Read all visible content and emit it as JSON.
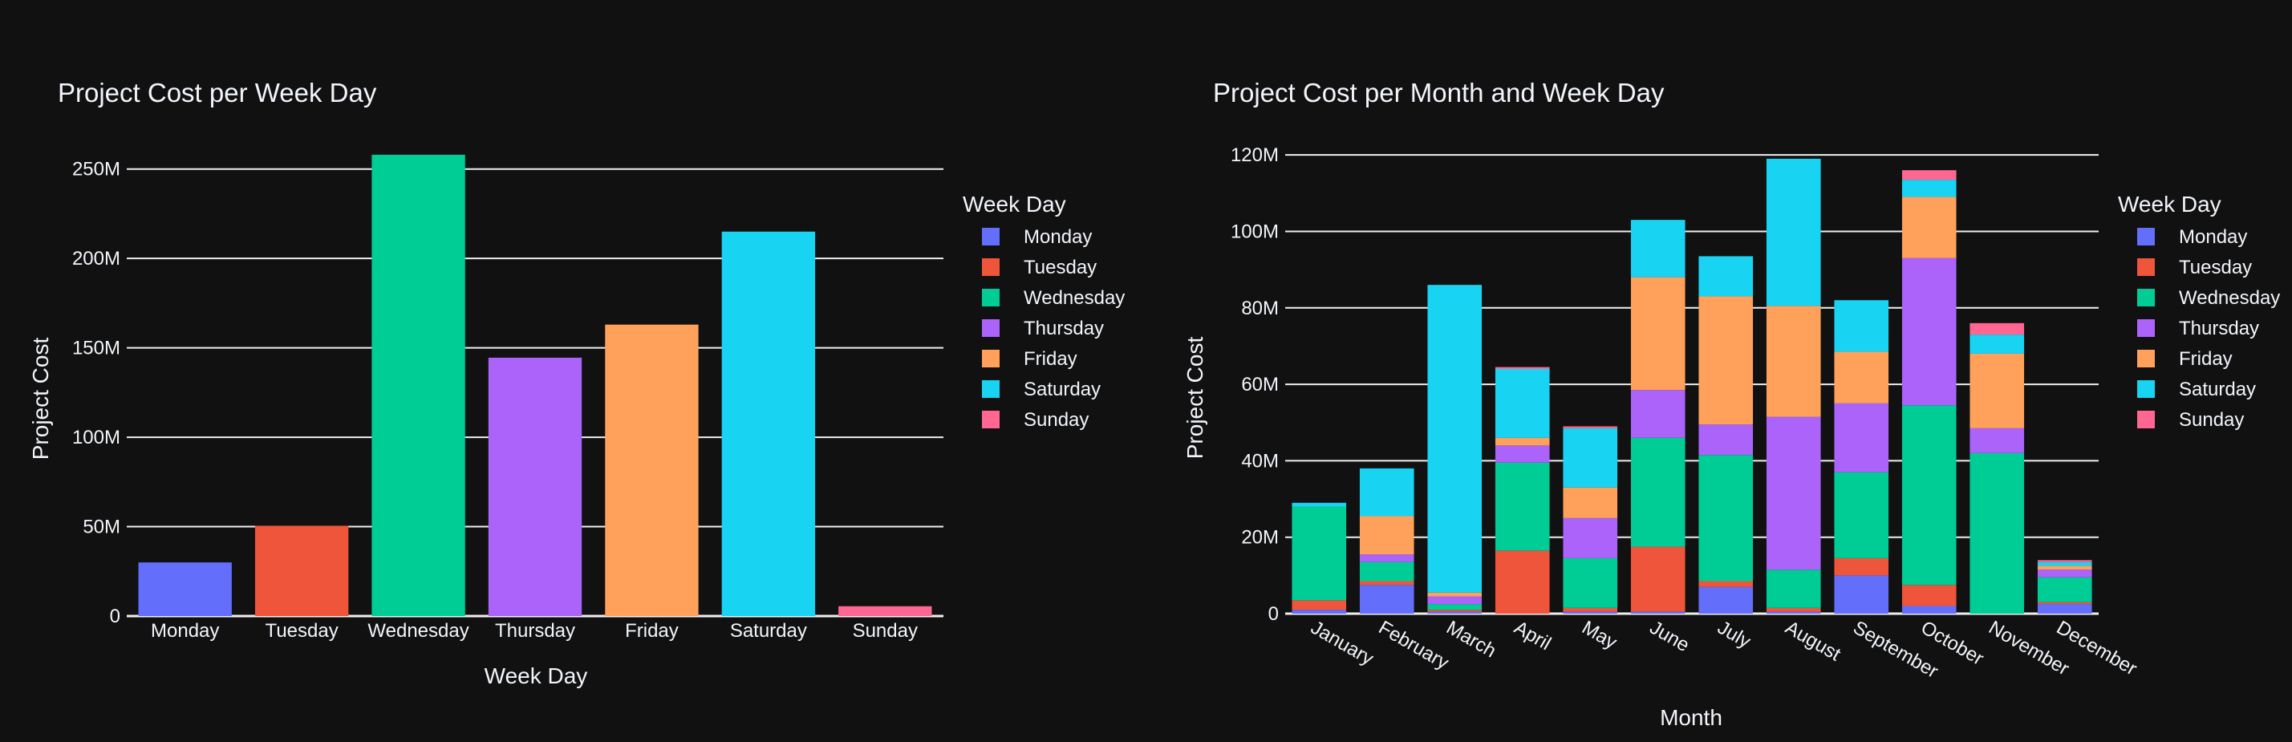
{
  "colors": {
    "Monday": "#636efa",
    "Tuesday": "#ef553b",
    "Wednesday": "#00cc96",
    "Thursday": "#ab63fa",
    "Friday": "#ffa15a",
    "Saturday": "#19d3f3",
    "Sunday": "#ff6692"
  },
  "chart_data": [
    {
      "type": "bar",
      "title": "Project Cost per Week Day",
      "xlabel": "Week Day",
      "ylabel": "Project Cost",
      "legend_title": "Week Day",
      "legend_position": "top-right",
      "grid": true,
      "ylim": [
        0,
        275000000
      ],
      "yticks": [
        0,
        50000000,
        100000000,
        150000000,
        200000000,
        250000000
      ],
      "ytick_labels": [
        "0",
        "50M",
        "100M",
        "150M",
        "200M",
        "250M"
      ],
      "categories": [
        "Monday",
        "Tuesday",
        "Wednesday",
        "Thursday",
        "Friday",
        "Saturday",
        "Sunday"
      ],
      "values": [
        30000000,
        50500000,
        258000000,
        144500000,
        163000000,
        215000000,
        5500000
      ]
    },
    {
      "type": "bar",
      "stacked": true,
      "title": "Project Cost per Month and Week Day",
      "xlabel": "Month",
      "ylabel": "Project Cost",
      "legend_title": "Week Day",
      "legend_position": "top-right",
      "grid": true,
      "ylim": [
        0,
        128000000
      ],
      "yticks": [
        0,
        20000000,
        40000000,
        60000000,
        80000000,
        100000000,
        120000000
      ],
      "ytick_labels": [
        "0",
        "20M",
        "40M",
        "60M",
        "80M",
        "100M",
        "120M"
      ],
      "categories": [
        "January",
        "February",
        "March",
        "April",
        "May",
        "June",
        "July",
        "August",
        "September",
        "October",
        "November",
        "December"
      ],
      "series": [
        {
          "name": "Monday",
          "values": [
            1000000,
            7500000,
            500000,
            0,
            500000,
            500000,
            7000000,
            500000,
            10000000,
            2000000,
            0,
            2500000
          ]
        },
        {
          "name": "Tuesday",
          "values": [
            2500000,
            1000000,
            500000,
            16500000,
            1000000,
            17000000,
            1500000,
            1000000,
            4500000,
            5500000,
            0,
            500000
          ]
        },
        {
          "name": "Wednesday",
          "values": [
            24500000,
            5000000,
            1500000,
            23000000,
            13000000,
            28500000,
            33000000,
            10000000,
            22500000,
            47000000,
            42000000,
            6500000
          ]
        },
        {
          "name": "Thursday",
          "values": [
            0,
            2000000,
            2000000,
            4500000,
            10500000,
            12500000,
            8000000,
            40000000,
            18000000,
            38500000,
            6500000,
            2000000
          ]
        },
        {
          "name": "Friday",
          "values": [
            0,
            10000000,
            1000000,
            2000000,
            8000000,
            29500000,
            33500000,
            29000000,
            13500000,
            16000000,
            19500000,
            1000000
          ]
        },
        {
          "name": "Saturday",
          "values": [
            1000000,
            12500000,
            80500000,
            18000000,
            15500000,
            15000000,
            10500000,
            38500000,
            13500000,
            4500000,
            5000000,
            1000000
          ]
        },
        {
          "name": "Sunday",
          "values": [
            0,
            0,
            0,
            500000,
            500000,
            0,
            0,
            0,
            0,
            2500000,
            3000000,
            500000
          ]
        }
      ]
    }
  ]
}
